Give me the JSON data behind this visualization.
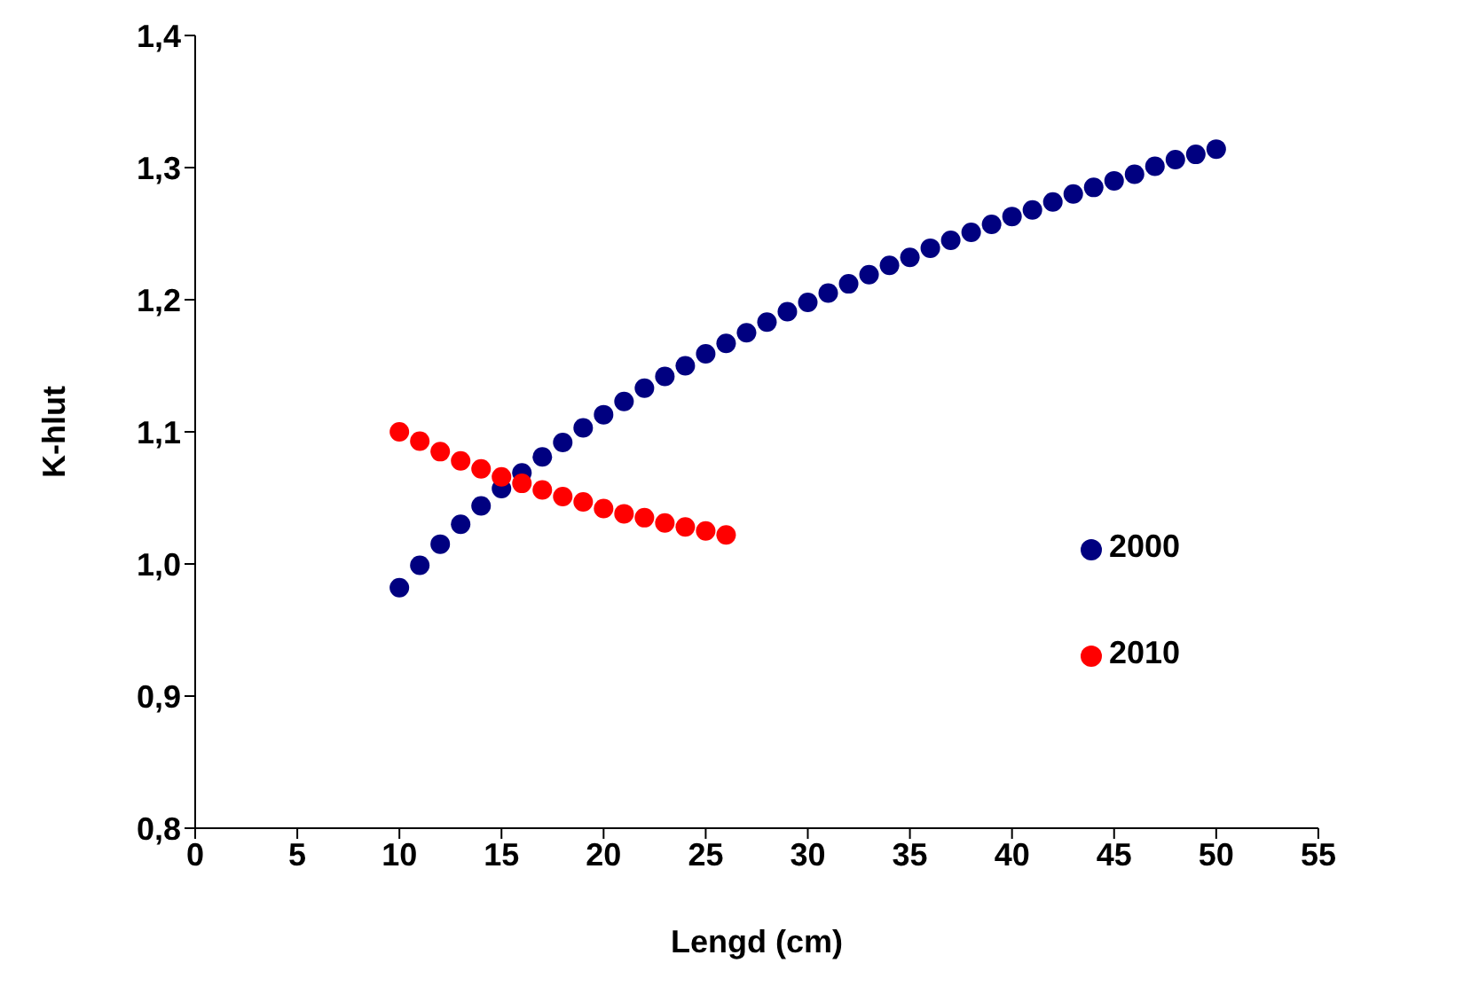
{
  "chart_data": {
    "type": "scatter",
    "xlabel": "Lengd (cm)",
    "ylabel": "K-hlut",
    "marker": "circle",
    "legend": "right",
    "grid": false,
    "xlim": [
      0,
      55
    ],
    "xticks": [
      0,
      5,
      10,
      15,
      20,
      25,
      30,
      35,
      40,
      45,
      50,
      55
    ],
    "ylim": [
      0.8,
      1.4
    ],
    "yticks": [
      {
        "value": 0.8,
        "label": "0,8"
      },
      {
        "value": 0.9,
        "label": "0,9"
      },
      {
        "value": 1.0,
        "label": "1,0"
      },
      {
        "value": 1.1,
        "label": "1,1"
      },
      {
        "value": 1.2,
        "label": "1,2"
      },
      {
        "value": 1.3,
        "label": "1,3"
      },
      {
        "value": 1.4,
        "label": "1,4"
      }
    ],
    "series": [
      {
        "name": "2000",
        "color": "#000080",
        "x": [
          10,
          11,
          12,
          13,
          14,
          15,
          16,
          17,
          18,
          19,
          20,
          21,
          22,
          23,
          24,
          25,
          26,
          27,
          28,
          29,
          30,
          31,
          32,
          33,
          34,
          35,
          36,
          37,
          38,
          39,
          40,
          41,
          42,
          43,
          44,
          45,
          46,
          47,
          48,
          49,
          50
        ],
        "values": [
          0.982,
          0.999,
          1.015,
          1.03,
          1.044,
          1.057,
          1.069,
          1.081,
          1.092,
          1.103,
          1.113,
          1.123,
          1.133,
          1.142,
          1.15,
          1.159,
          1.167,
          1.175,
          1.183,
          1.191,
          1.198,
          1.205,
          1.212,
          1.219,
          1.226,
          1.232,
          1.239,
          1.245,
          1.251,
          1.257,
          1.263,
          1.268,
          1.274,
          1.28,
          1.285,
          1.29,
          1.295,
          1.301,
          1.306,
          1.31,
          1.314
        ]
      },
      {
        "name": "2010",
        "color": "#ff0000",
        "x": [
          10,
          11,
          12,
          13,
          14,
          15,
          16,
          17,
          18,
          19,
          20,
          21,
          22,
          23,
          24,
          25,
          26
        ],
        "values": [
          1.1,
          1.093,
          1.085,
          1.078,
          1.072,
          1.066,
          1.061,
          1.056,
          1.051,
          1.047,
          1.042,
          1.038,
          1.035,
          1.031,
          1.028,
          1.025,
          1.022
        ]
      }
    ]
  }
}
